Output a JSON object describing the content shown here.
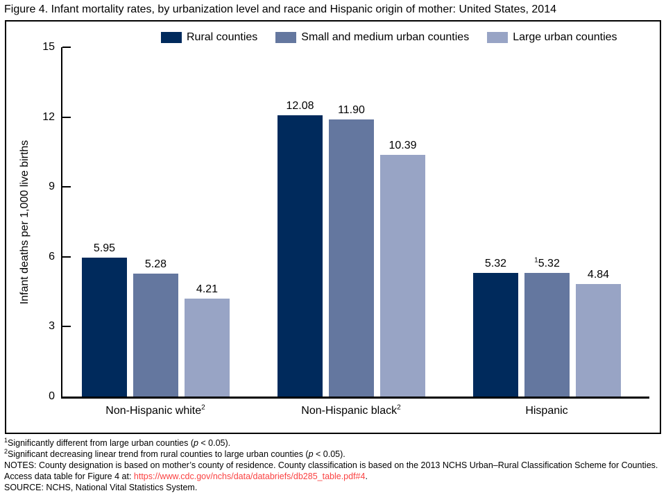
{
  "title": "Figure 4. Infant mortality rates, by urbanization level and race and Hispanic origin of mother: United States, 2014",
  "colors": {
    "rural": "#002a5c",
    "small_medium_urban": "#64779f",
    "large_urban": "#98a4c5",
    "axis": "#000000",
    "link_red": "#fa4242",
    "frame_border": "#000000"
  },
  "chart_data": {
    "type": "bar",
    "title": "Figure 4. Infant mortality rates, by urbanization level and race and Hispanic origin of mother: United States, 2014",
    "xlabel": "",
    "ylabel": "Infant deaths per 1,000 live births",
    "ylim": [
      0,
      15
    ],
    "yticks": [
      0,
      3,
      6,
      9,
      12,
      15
    ],
    "grid": false,
    "legend_position": "top",
    "categories": [
      {
        "text": "Non-Hispanic white",
        "sup": "2",
        "slug": "non-hispanic-white"
      },
      {
        "text": "Non-Hispanic black",
        "sup": "2",
        "slug": "non-hispanic-black"
      },
      {
        "text": "Hispanic",
        "sup": "",
        "slug": "hispanic"
      }
    ],
    "series": [
      {
        "name": "Rural counties",
        "slug": "rural",
        "color": "#002a5c",
        "values": [
          5.95,
          12.08,
          5.32
        ],
        "value_labels": [
          {
            "sup": "",
            "text": "5.95"
          },
          {
            "sup": "",
            "text": "12.08"
          },
          {
            "sup": "",
            "text": "5.32"
          }
        ]
      },
      {
        "name": "Small and medium urban counties",
        "slug": "small-medium-urban",
        "color": "#64779f",
        "values": [
          5.28,
          11.9,
          5.32
        ],
        "value_labels": [
          {
            "sup": "",
            "text": "5.28"
          },
          {
            "sup": "",
            "text": "11.90"
          },
          {
            "sup": "1",
            "text": "5.32"
          }
        ]
      },
      {
        "name": "Large urban counties",
        "slug": "large-urban",
        "color": "#98a4c5",
        "values": [
          4.21,
          10.39,
          4.84
        ],
        "value_labels": [
          {
            "sup": "",
            "text": "4.21"
          },
          {
            "sup": "",
            "text": "10.39"
          },
          {
            "sup": "",
            "text": "4.84"
          }
        ]
      }
    ]
  },
  "footnotes": {
    "fn1": {
      "sup": "1",
      "pre": "Significantly different from large urban counties (",
      "p": "p",
      "post": " < 0.05)."
    },
    "fn2": {
      "sup": "2",
      "pre": "Significant decreasing linear trend from rural counties to large urban counties (",
      "p": "p",
      "post": " < 0.05)."
    },
    "notes": {
      "pre": "NOTES: County designation is based on mother’s county of residence. County classification is based on the 2013 NCHS Urban–Rural Classification Scheme for Counties. Access data table for Figure 4 at: ",
      "link": "https://www.cdc.gov/nchs/data/databriefs/db285_table.pdf#4",
      "post": "."
    },
    "source": "SOURCE: NCHS, National Vital Statistics System."
  }
}
